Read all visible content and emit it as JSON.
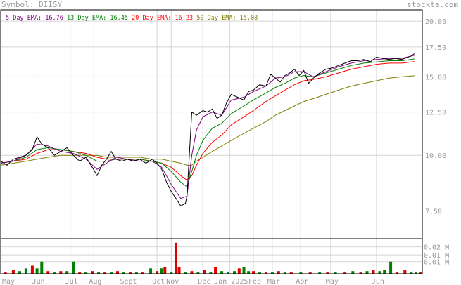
{
  "header": {
    "symbol_label": "Symbol: DIISY",
    "brand": "stockta.com"
  },
  "legend": [
    {
      "label": "5 Day EMA:",
      "value": "16.76",
      "color": "#800080"
    },
    {
      "label": "13 Day EMA:",
      "value": "16.45",
      "color": "#008000"
    },
    {
      "label": "20 Day EMA:",
      "value": "16.23",
      "color": "#ff0000"
    },
    {
      "label": "50 Day EMA:",
      "value": "15.08",
      "color": "#808000"
    }
  ],
  "colors": {
    "price": "#000000",
    "grid": "#d4d4d4",
    "vol_up": "#008000",
    "vol_down": "#dd0000",
    "frame": "#000000"
  },
  "chart_data": {
    "type": "line",
    "x": [
      "May",
      "Jun",
      "Jul",
      "Aug",
      "Sept",
      "Oct",
      "Nov",
      "Dec",
      "Jan 2025",
      "Feb",
      "Mar",
      "Apr",
      "May",
      "Jun"
    ],
    "y_ticks": [
      "20.00",
      "17.50",
      "15.00",
      "12.50",
      "10.00",
      "7.50"
    ],
    "y_tick_values": [
      20,
      17.5,
      15,
      12.5,
      10,
      7.5
    ],
    "ylim": [
      6.5,
      21.2
    ],
    "y_scale": "log",
    "x_months": [
      {
        "label": "May",
        "day": 0
      },
      {
        "label": "Jun",
        "day": 23
      },
      {
        "label": "Jul",
        "day": 44
      },
      {
        "label": "Aug",
        "day": 59
      },
      {
        "label": "Sept",
        "day": 80
      },
      {
        "label": "Oct",
        "day": 99
      },
      {
        "label": "Nov",
        "day": 108
      },
      {
        "label": "Dec",
        "day": 128
      },
      {
        "label": "Jan 2025",
        "day": 145
      },
      {
        "label": "Feb",
        "day": 160
      },
      {
        "label": "Mar",
        "day": 172
      },
      {
        "label": "Apr",
        "day": 190
      },
      {
        "label": "May",
        "day": 209
      },
      {
        "label": "Jun",
        "day": 238
      }
    ],
    "price": [
      [
        0,
        9.7
      ],
      [
        4,
        9.5
      ],
      [
        8,
        9.8
      ],
      [
        12,
        9.9
      ],
      [
        16,
        10.0
      ],
      [
        20,
        10.3
      ],
      [
        23,
        11.0
      ],
      [
        26,
        10.6
      ],
      [
        30,
        10.4
      ],
      [
        34,
        10.0
      ],
      [
        38,
        10.2
      ],
      [
        42,
        10.4
      ],
      [
        46,
        10.0
      ],
      [
        50,
        9.7
      ],
      [
        54,
        9.9
      ],
      [
        58,
        9.4
      ],
      [
        61,
        9.0
      ],
      [
        64,
        9.5
      ],
      [
        67,
        9.8
      ],
      [
        70,
        10.2
      ],
      [
        73,
        9.8
      ],
      [
        77,
        9.7
      ],
      [
        80,
        9.8
      ],
      [
        84,
        9.7
      ],
      [
        88,
        9.8
      ],
      [
        92,
        9.6
      ],
      [
        96,
        9.8
      ],
      [
        99,
        9.6
      ],
      [
        102,
        9.3
      ],
      [
        105,
        8.7
      ],
      [
        108,
        8.3
      ],
      [
        111,
        8.0
      ],
      [
        114,
        7.7
      ],
      [
        117,
        7.8
      ],
      [
        118,
        8.1
      ],
      [
        121,
        12.5
      ],
      [
        124,
        12.3
      ],
      [
        128,
        12.6
      ],
      [
        131,
        12.5
      ],
      [
        134,
        12.7
      ],
      [
        137,
        12.1
      ],
      [
        140,
        12.3
      ],
      [
        143,
        13.1
      ],
      [
        146,
        13.7
      ],
      [
        150,
        13.5
      ],
      [
        154,
        13.3
      ],
      [
        157,
        13.9
      ],
      [
        160,
        14.0
      ],
      [
        164,
        14.4
      ],
      [
        168,
        14.3
      ],
      [
        171,
        15.2
      ],
      [
        174,
        14.9
      ],
      [
        177,
        14.6
      ],
      [
        180,
        15.1
      ],
      [
        183,
        15.3
      ],
      [
        186,
        15.6
      ],
      [
        189,
        15.1
      ],
      [
        192,
        15.5
      ],
      [
        195,
        14.5
      ],
      [
        198,
        14.9
      ],
      [
        202,
        15.3
      ],
      [
        206,
        15.6
      ],
      [
        210,
        15.7
      ],
      [
        214,
        15.9
      ],
      [
        218,
        16.1
      ],
      [
        222,
        16.3
      ],
      [
        226,
        16.3
      ],
      [
        230,
        16.4
      ],
      [
        234,
        16.2
      ],
      [
        238,
        16.6
      ],
      [
        242,
        16.5
      ],
      [
        246,
        16.4
      ],
      [
        250,
        16.5
      ],
      [
        254,
        16.4
      ],
      [
        258,
        16.6
      ],
      [
        260,
        16.7
      ],
      [
        262,
        16.9
      ]
    ],
    "series": [
      {
        "name": "5 Day EMA",
        "color": "#800080",
        "values": [
          [
            0,
            9.6
          ],
          [
            8,
            9.7
          ],
          [
            16,
            10.0
          ],
          [
            23,
            10.6
          ],
          [
            30,
            10.5
          ],
          [
            38,
            10.2
          ],
          [
            46,
            10.1
          ],
          [
            54,
            9.8
          ],
          [
            61,
            9.3
          ],
          [
            67,
            9.6
          ],
          [
            73,
            9.9
          ],
          [
            80,
            9.8
          ],
          [
            88,
            9.7
          ],
          [
            96,
            9.7
          ],
          [
            102,
            9.4
          ],
          [
            108,
            8.6
          ],
          [
            114,
            8.0
          ],
          [
            118,
            8.1
          ],
          [
            121,
            10.0
          ],
          [
            124,
            11.4
          ],
          [
            128,
            12.2
          ],
          [
            134,
            12.5
          ],
          [
            140,
            12.3
          ],
          [
            146,
            13.3
          ],
          [
            154,
            13.5
          ],
          [
            160,
            13.9
          ],
          [
            168,
            14.3
          ],
          [
            174,
            14.9
          ],
          [
            180,
            15.0
          ],
          [
            186,
            15.4
          ],
          [
            192,
            15.4
          ],
          [
            198,
            15.0
          ],
          [
            206,
            15.4
          ],
          [
            214,
            15.8
          ],
          [
            222,
            16.1
          ],
          [
            230,
            16.3
          ],
          [
            238,
            16.4
          ],
          [
            246,
            16.5
          ],
          [
            254,
            16.5
          ],
          [
            262,
            16.76
          ]
        ]
      },
      {
        "name": "13 Day EMA",
        "color": "#008000",
        "values": [
          [
            0,
            9.6
          ],
          [
            8,
            9.7
          ],
          [
            16,
            9.9
          ],
          [
            23,
            10.3
          ],
          [
            30,
            10.4
          ],
          [
            38,
            10.3
          ],
          [
            46,
            10.2
          ],
          [
            54,
            10.0
          ],
          [
            61,
            9.7
          ],
          [
            67,
            9.7
          ],
          [
            73,
            9.8
          ],
          [
            80,
            9.8
          ],
          [
            88,
            9.8
          ],
          [
            96,
            9.7
          ],
          [
            102,
            9.6
          ],
          [
            108,
            9.2
          ],
          [
            114,
            8.7
          ],
          [
            118,
            8.5
          ],
          [
            121,
            9.2
          ],
          [
            124,
            10.0
          ],
          [
            128,
            10.8
          ],
          [
            134,
            11.5
          ],
          [
            140,
            11.8
          ],
          [
            146,
            12.4
          ],
          [
            154,
            12.9
          ],
          [
            160,
            13.3
          ],
          [
            168,
            13.8
          ],
          [
            174,
            14.2
          ],
          [
            180,
            14.5
          ],
          [
            186,
            14.9
          ],
          [
            192,
            15.1
          ],
          [
            198,
            15.0
          ],
          [
            206,
            15.3
          ],
          [
            214,
            15.6
          ],
          [
            222,
            15.9
          ],
          [
            230,
            16.1
          ],
          [
            238,
            16.2
          ],
          [
            246,
            16.3
          ],
          [
            254,
            16.3
          ],
          [
            262,
            16.45
          ]
        ]
      },
      {
        "name": "20 Day EMA",
        "color": "#ff0000",
        "values": [
          [
            0,
            9.7
          ],
          [
            8,
            9.7
          ],
          [
            16,
            9.8
          ],
          [
            23,
            10.1
          ],
          [
            30,
            10.3
          ],
          [
            38,
            10.3
          ],
          [
            46,
            10.2
          ],
          [
            54,
            10.1
          ],
          [
            61,
            9.9
          ],
          [
            67,
            9.8
          ],
          [
            73,
            9.8
          ],
          [
            80,
            9.8
          ],
          [
            88,
            9.8
          ],
          [
            96,
            9.7
          ],
          [
            102,
            9.6
          ],
          [
            108,
            9.4
          ],
          [
            114,
            9.0
          ],
          [
            118,
            8.8
          ],
          [
            121,
            9.0
          ],
          [
            124,
            9.5
          ],
          [
            128,
            10.1
          ],
          [
            134,
            10.7
          ],
          [
            140,
            11.1
          ],
          [
            146,
            11.7
          ],
          [
            154,
            12.2
          ],
          [
            160,
            12.6
          ],
          [
            168,
            13.2
          ],
          [
            174,
            13.6
          ],
          [
            180,
            14.0
          ],
          [
            186,
            14.4
          ],
          [
            192,
            14.7
          ],
          [
            198,
            14.8
          ],
          [
            206,
            15.0
          ],
          [
            214,
            15.3
          ],
          [
            222,
            15.6
          ],
          [
            230,
            15.8
          ],
          [
            238,
            16.0
          ],
          [
            246,
            16.1
          ],
          [
            254,
            16.1
          ],
          [
            262,
            16.23
          ]
        ]
      },
      {
        "name": "50 Day EMA",
        "color": "#808000",
        "values": [
          [
            0,
            9.5
          ],
          [
            8,
            9.6
          ],
          [
            16,
            9.7
          ],
          [
            23,
            9.8
          ],
          [
            30,
            9.9
          ],
          [
            38,
            10.0
          ],
          [
            46,
            10.0
          ],
          [
            54,
            10.0
          ],
          [
            61,
            10.0
          ],
          [
            67,
            9.9
          ],
          [
            73,
            9.9
          ],
          [
            80,
            9.9
          ],
          [
            88,
            9.9
          ],
          [
            96,
            9.8
          ],
          [
            102,
            9.8
          ],
          [
            108,
            9.7
          ],
          [
            114,
            9.6
          ],
          [
            118,
            9.5
          ],
          [
            121,
            9.5
          ],
          [
            124,
            9.7
          ],
          [
            128,
            9.9
          ],
          [
            134,
            10.2
          ],
          [
            140,
            10.5
          ],
          [
            146,
            10.8
          ],
          [
            154,
            11.2
          ],
          [
            160,
            11.5
          ],
          [
            168,
            11.9
          ],
          [
            174,
            12.3
          ],
          [
            180,
            12.6
          ],
          [
            186,
            12.9
          ],
          [
            192,
            13.2
          ],
          [
            198,
            13.4
          ],
          [
            206,
            13.7
          ],
          [
            214,
            14.0
          ],
          [
            222,
            14.3
          ],
          [
            230,
            14.5
          ],
          [
            238,
            14.7
          ],
          [
            246,
            14.9
          ],
          [
            254,
            15.0
          ],
          [
            262,
            15.08
          ]
        ]
      }
    ],
    "volume": {
      "ticks": [
        "0.02 M",
        "0.01 M",
        "0.01 M"
      ],
      "tick_values": [
        0.02,
        0.014,
        0.009
      ],
      "ylim": [
        0,
        0.0255
      ],
      "bars": [
        [
          3,
          0.001,
          "down"
        ],
        [
          8,
          0.003,
          "down"
        ],
        [
          12,
          0.002,
          "up"
        ],
        [
          16,
          0.004,
          "up"
        ],
        [
          20,
          0.006,
          "down"
        ],
        [
          23,
          0.004,
          "up"
        ],
        [
          26,
          0.009,
          "up"
        ],
        [
          30,
          0.002,
          "down"
        ],
        [
          34,
          0.001,
          "up"
        ],
        [
          38,
          0.002,
          "down"
        ],
        [
          42,
          0.002,
          "up"
        ],
        [
          46,
          0.009,
          "up"
        ],
        [
          50,
          0.001,
          "down"
        ],
        [
          54,
          0.001,
          "up"
        ],
        [
          58,
          0.002,
          "down"
        ],
        [
          62,
          0.001,
          "up"
        ],
        [
          66,
          0.001,
          "down"
        ],
        [
          70,
          0.001,
          "up"
        ],
        [
          74,
          0.002,
          "down"
        ],
        [
          78,
          0.001,
          "up"
        ],
        [
          82,
          0.001,
          "down"
        ],
        [
          86,
          0.001,
          "up"
        ],
        [
          90,
          0.001,
          "down"
        ],
        [
          95,
          0.004,
          "up"
        ],
        [
          99,
          0.002,
          "down"
        ],
        [
          102,
          0.004,
          "up"
        ],
        [
          104,
          0.005,
          "down"
        ],
        [
          108,
          0.001,
          "up"
        ],
        [
          111,
          0.023,
          "down"
        ],
        [
          113,
          0.005,
          "down"
        ],
        [
          117,
          0.001,
          "up"
        ],
        [
          121,
          0.002,
          "down"
        ],
        [
          125,
          0.001,
          "up"
        ],
        [
          129,
          0.003,
          "down"
        ],
        [
          133,
          0.001,
          "up"
        ],
        [
          136,
          0.005,
          "down"
        ],
        [
          140,
          0.002,
          "up"
        ],
        [
          144,
          0.001,
          "up"
        ],
        [
          148,
          0.002,
          "up"
        ],
        [
          151,
          0.004,
          "down"
        ],
        [
          154,
          0.005,
          "up"
        ],
        [
          157,
          0.002,
          "up"
        ],
        [
          160,
          0.002,
          "down"
        ],
        [
          164,
          0.001,
          "up"
        ],
        [
          168,
          0.001,
          "down"
        ],
        [
          172,
          0.001,
          "up"
        ],
        [
          176,
          0.002,
          "down"
        ],
        [
          180,
          0.001,
          "up"
        ],
        [
          184,
          0.001,
          "down"
        ],
        [
          190,
          0.001,
          "up"
        ],
        [
          196,
          0.001,
          "down"
        ],
        [
          202,
          0.001,
          "up"
        ],
        [
          207,
          0.001,
          "down"
        ],
        [
          212,
          0.001,
          "up"
        ],
        [
          218,
          0.001,
          "down"
        ],
        [
          223,
          0.002,
          "up"
        ],
        [
          228,
          0.001,
          "down"
        ],
        [
          232,
          0.002,
          "up"
        ],
        [
          236,
          0.003,
          "down"
        ],
        [
          240,
          0.002,
          "up"
        ],
        [
          243,
          0.003,
          "up"
        ],
        [
          247,
          0.009,
          "up"
        ],
        [
          251,
          0.001,
          "down"
        ],
        [
          256,
          0.003,
          "down"
        ],
        [
          260,
          0.001,
          "up"
        ],
        [
          263,
          0.001,
          "up"
        ],
        [
          266,
          0.001,
          "down"
        ]
      ]
    },
    "xlabel": "",
    "ylabel": "",
    "grid": true
  }
}
